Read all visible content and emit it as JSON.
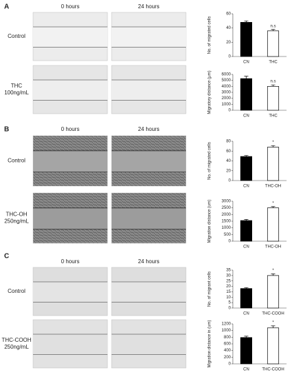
{
  "panels": [
    {
      "letter": "A",
      "time_labels": [
        "0 hours",
        "24 hours"
      ],
      "rows": [
        [
          "Control"
        ],
        [
          "THC",
          "100ng/mL"
        ]
      ]
    },
    {
      "letter": "B",
      "time_labels": [
        "0 hours",
        "24 hours"
      ],
      "rows": [
        [
          "Control"
        ],
        [
          "THC-OH",
          "250ng/mL"
        ]
      ]
    },
    {
      "letter": "C",
      "time_labels": [
        "0 hours",
        "24 hours"
      ],
      "rows": [
        [
          "Control"
        ],
        [
          "THC-COOH",
          "250ng/mL"
        ]
      ]
    }
  ],
  "chart_data": [
    {
      "type": "bar",
      "y_label": "No. of migrated cells",
      "categories": [
        "CN",
        "THC"
      ],
      "values": [
        48,
        36
      ],
      "errors": [
        2,
        2
      ],
      "annotations": [
        null,
        "n.s"
      ],
      "colors": [
        "#000000",
        "#ffffff"
      ],
      "ylim": [
        0,
        60
      ],
      "yticks": [
        0,
        20,
        40,
        60
      ]
    },
    {
      "type": "bar",
      "y_label": "Migratory distance (μm)",
      "categories": [
        "CN",
        "THC"
      ],
      "values": [
        5300,
        4000
      ],
      "errors": [
        400,
        250
      ],
      "annotations": [
        null,
        "n.s"
      ],
      "colors": [
        "#000000",
        "#ffffff"
      ],
      "ylim": [
        0,
        6000
      ],
      "yticks": [
        0,
        1000,
        2000,
        3000,
        4000,
        5000,
        6000
      ]
    },
    {
      "type": "bar",
      "y_label": "No. of migrated cells",
      "categories": [
        "CN",
        "THC-OH"
      ],
      "values": [
        49,
        68
      ],
      "errors": [
        2,
        3
      ],
      "annotations": [
        null,
        "*"
      ],
      "colors": [
        "#000000",
        "#ffffff"
      ],
      "ylim": [
        0,
        80
      ],
      "yticks": [
        0,
        20,
        40,
        60,
        80
      ]
    },
    {
      "type": "bar",
      "y_label": "Migration distance (um)",
      "categories": [
        "CN",
        "THC-OH"
      ],
      "values": [
        1550,
        2500
      ],
      "errors": [
        80,
        100
      ],
      "annotations": [
        null,
        "*"
      ],
      "colors": [
        "#000000",
        "#ffffff"
      ],
      "ylim": [
        0,
        3000
      ],
      "yticks": [
        0,
        500,
        1000,
        1500,
        2000,
        2500,
        3000
      ]
    },
    {
      "type": "bar",
      "y_label": "No. of migrant cells",
      "categories": [
        "CN",
        "THC-COOH"
      ],
      "values": [
        18,
        30
      ],
      "errors": [
        0.8,
        1.5
      ],
      "annotations": [
        null,
        "*"
      ],
      "colors": [
        "#000000",
        "#ffffff"
      ],
      "ylim": [
        0,
        35
      ],
      "yticks": [
        0,
        5,
        10,
        15,
        20,
        25,
        30,
        35
      ]
    },
    {
      "type": "bar",
      "y_label": "Migration distance in (um)",
      "categories": [
        "CN",
        "THC-COOH"
      ],
      "values": [
        790,
        1080
      ],
      "errors": [
        40,
        60
      ],
      "annotations": [
        null,
        "*"
      ],
      "colors": [
        "#000000",
        "#ffffff"
      ],
      "ylim": [
        0,
        1200
      ],
      "yticks": [
        0,
        200,
        400,
        600,
        800,
        1000,
        1200
      ]
    }
  ]
}
